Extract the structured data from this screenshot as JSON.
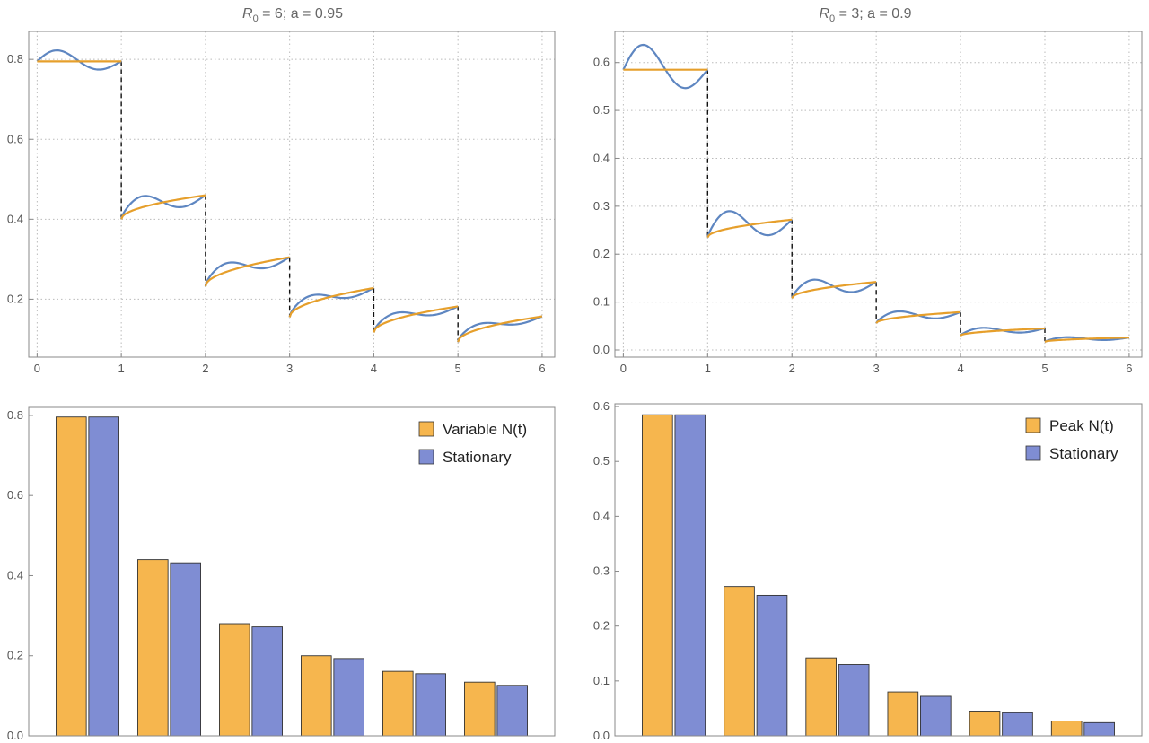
{
  "colors": {
    "orange": "#f6b64e",
    "orange_line": "#e69f2b",
    "blue_line": "#5e86c1",
    "blue_bar": "#7f8dd3",
    "frame": "#888888",
    "grid": "#bbbbbb"
  },
  "chart_data": [
    {
      "type": "line",
      "title_text": "R",
      "title_sub": "0",
      "title_rest": " = 6; a = 0.95",
      "grid": true,
      "xlim": [
        -0.1,
        6.15
      ],
      "ylim": [
        0.055,
        0.87
      ],
      "xticks": [
        0,
        1,
        2,
        3,
        4,
        5,
        6
      ],
      "xtick_labels": [
        "0",
        "1",
        "2",
        "3",
        "4",
        "5",
        "6"
      ],
      "yticks": [
        0.2,
        0.4,
        0.6,
        0.8
      ],
      "ytick_labels": [
        "0.2",
        "0.4",
        "0.6",
        "0.8"
      ],
      "segments": [
        {
          "x0": 0,
          "x1": 1,
          "y0": 0.795,
          "y1": 0.795,
          "amp": 0.032
        },
        {
          "x0": 1,
          "x1": 2,
          "y0": 0.4,
          "y1": 0.46,
          "amp": 0.032
        },
        {
          "x0": 2,
          "x1": 3,
          "y0": 0.232,
          "y1": 0.305,
          "amp": 0.025
        },
        {
          "x0": 3,
          "x1": 4,
          "y0": 0.155,
          "y1": 0.228,
          "amp": 0.02
        },
        {
          "x0": 4,
          "x1": 5,
          "y0": 0.117,
          "y1": 0.182,
          "amp": 0.018
        },
        {
          "x0": 5,
          "x1": 6,
          "y0": 0.093,
          "y1": 0.157,
          "amp": 0.015
        }
      ]
    },
    {
      "type": "line",
      "title_text": "R",
      "title_sub": "0",
      "title_rest": " = 3; a = 0.9",
      "grid": true,
      "xlim": [
        -0.1,
        6.15
      ],
      "ylim": [
        -0.015,
        0.665
      ],
      "xticks": [
        0,
        1,
        2,
        3,
        4,
        5,
        6
      ],
      "xtick_labels": [
        "0",
        "1",
        "2",
        "3",
        "4",
        "5",
        "6"
      ],
      "yticks": [
        0.0,
        0.1,
        0.2,
        0.3,
        0.4,
        0.5,
        0.6
      ],
      "ytick_labels": [
        "0.0",
        "0.1",
        "0.2",
        "0.3",
        "0.4",
        "0.5",
        "0.6"
      ],
      "segments": [
        {
          "x0": 0,
          "x1": 1,
          "y0": 0.585,
          "y1": 0.585,
          "amp": 0.06
        },
        {
          "x0": 1,
          "x1": 2,
          "y0": 0.235,
          "y1": 0.272,
          "amp": 0.042
        },
        {
          "x0": 2,
          "x1": 3,
          "y0": 0.108,
          "y1": 0.142,
          "amp": 0.025
        },
        {
          "x0": 3,
          "x1": 4,
          "y0": 0.056,
          "y1": 0.079,
          "amp": 0.015
        },
        {
          "x0": 4,
          "x1": 5,
          "y0": 0.03,
          "y1": 0.045,
          "amp": 0.01
        },
        {
          "x0": 5,
          "x1": 6,
          "y0": 0.017,
          "y1": 0.026,
          "amp": 0.006
        }
      ]
    },
    {
      "type": "bar",
      "grid": false,
      "ylim": [
        0,
        0.82
      ],
      "yticks": [
        0.0,
        0.2,
        0.4,
        0.6,
        0.8
      ],
      "ytick_labels": [
        "0.0",
        "0.2",
        "0.4",
        "0.6",
        "0.8"
      ],
      "legend_position": "top-right",
      "series": [
        {
          "name": "Variable N(t)",
          "values": [
            0.796,
            0.44,
            0.28,
            0.2,
            0.161,
            0.134
          ]
        },
        {
          "name": "Stationary",
          "values": [
            0.796,
            0.432,
            0.272,
            0.193,
            0.155,
            0.126
          ]
        }
      ]
    },
    {
      "type": "bar",
      "grid": false,
      "ylim": [
        0,
        0.605
      ],
      "yticks": [
        0.0,
        0.1,
        0.2,
        0.3,
        0.4,
        0.5,
        0.6
      ],
      "ytick_labels": [
        "0.0",
        "0.1",
        "0.2",
        "0.3",
        "0.4",
        "0.5",
        "0.6"
      ],
      "legend_position": "top-right",
      "series": [
        {
          "name": "Peak N(t)",
          "values": [
            0.585,
            0.272,
            0.142,
            0.08,
            0.045,
            0.027
          ]
        },
        {
          "name": "Stationary",
          "values": [
            0.585,
            0.256,
            0.13,
            0.072,
            0.042,
            0.024
          ]
        }
      ]
    }
  ]
}
